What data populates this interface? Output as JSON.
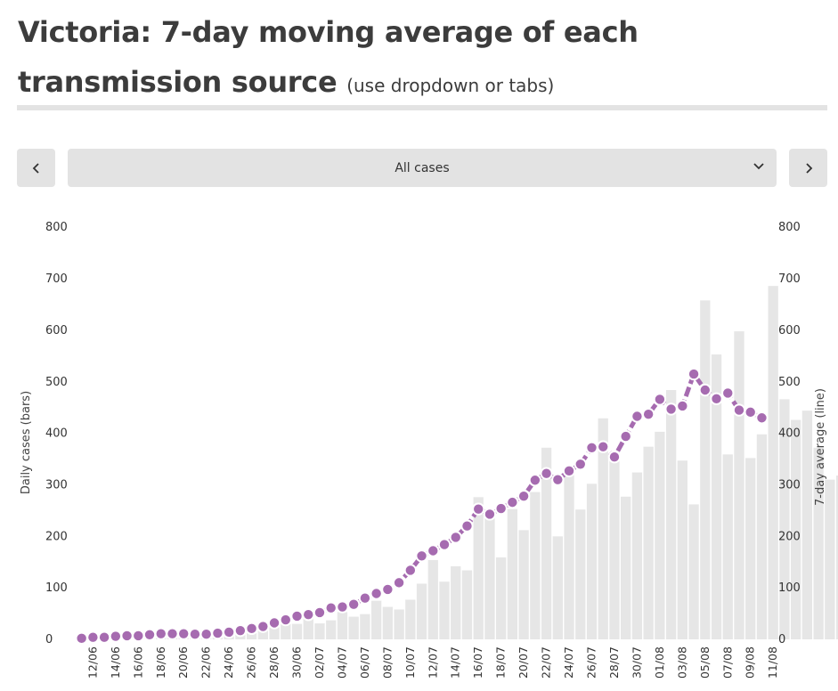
{
  "header": {
    "title_main": "Victoria: 7-day moving average of each transmission source",
    "title_sub": "(use dropdown or tabs)"
  },
  "controls": {
    "prev_icon": "chevron-left-icon",
    "next_icon": "chevron-right-icon",
    "dropdown_icon": "chevron-down-icon",
    "selected_option": "All cases"
  },
  "colors": {
    "bar": "#e6e6e6",
    "line": "#a66bb0",
    "marker_stroke": "#ffffff",
    "control_bg": "#e3e3e3"
  },
  "chart_data": {
    "type": "bar",
    "ylabel_left": "Daily cases (bars)",
    "ylabel_right": "7-day average (line)",
    "ylim": [
      0,
      800
    ],
    "yticks": [
      0,
      100,
      200,
      300,
      400,
      500,
      600,
      700,
      800
    ],
    "xtick_labels": [
      "12/06",
      "14/06",
      "16/06",
      "18/06",
      "20/06",
      "22/06",
      "24/06",
      "26/06",
      "28/06",
      "30/06",
      "02/07",
      "04/07",
      "06/07",
      "08/07",
      "10/07",
      "12/07",
      "14/07",
      "16/07",
      "18/07",
      "20/07",
      "22/07",
      "24/07",
      "26/07",
      "28/07",
      "30/07",
      "01/08",
      "03/08",
      "05/08",
      "07/08",
      "09/08",
      "11/08"
    ],
    "bar_series": {
      "name": "Daily cases",
      "values": [
        3,
        4,
        7,
        6,
        8,
        10,
        12,
        12,
        11,
        14,
        12,
        8,
        11,
        14,
        20,
        12,
        18,
        27,
        33,
        30,
        41,
        31,
        37,
        53,
        44,
        49,
        75,
        63,
        58,
        77,
        108,
        154,
        112,
        142,
        134,
        276,
        243,
        159,
        253,
        212,
        286,
        372,
        200,
        328,
        252,
        302,
        429,
        363,
        277,
        324,
        374,
        403,
        484,
        347,
        262,
        658,
        553,
        359,
        598,
        352,
        398,
        686,
        466,
        426,
        444,
        372,
        310,
        318
      ],
      "last_label": "11/08"
    },
    "line_series": {
      "name": "7-day average",
      "values": [
        2,
        4,
        4,
        6,
        7,
        7,
        9,
        11,
        11,
        11,
        10,
        10,
        12,
        14,
        17,
        21,
        25,
        32,
        38,
        45,
        48,
        52,
        61,
        63,
        68,
        80,
        89,
        97,
        110,
        134,
        162,
        172,
        184,
        198,
        220,
        253,
        243,
        254,
        266,
        278,
        309,
        322,
        310,
        327,
        340,
        372,
        374,
        354,
        394,
        433,
        437,
        466,
        447,
        453,
        515,
        484,
        467,
        478,
        445,
        441,
        430
      ],
      "last_label": "08/08"
    }
  }
}
